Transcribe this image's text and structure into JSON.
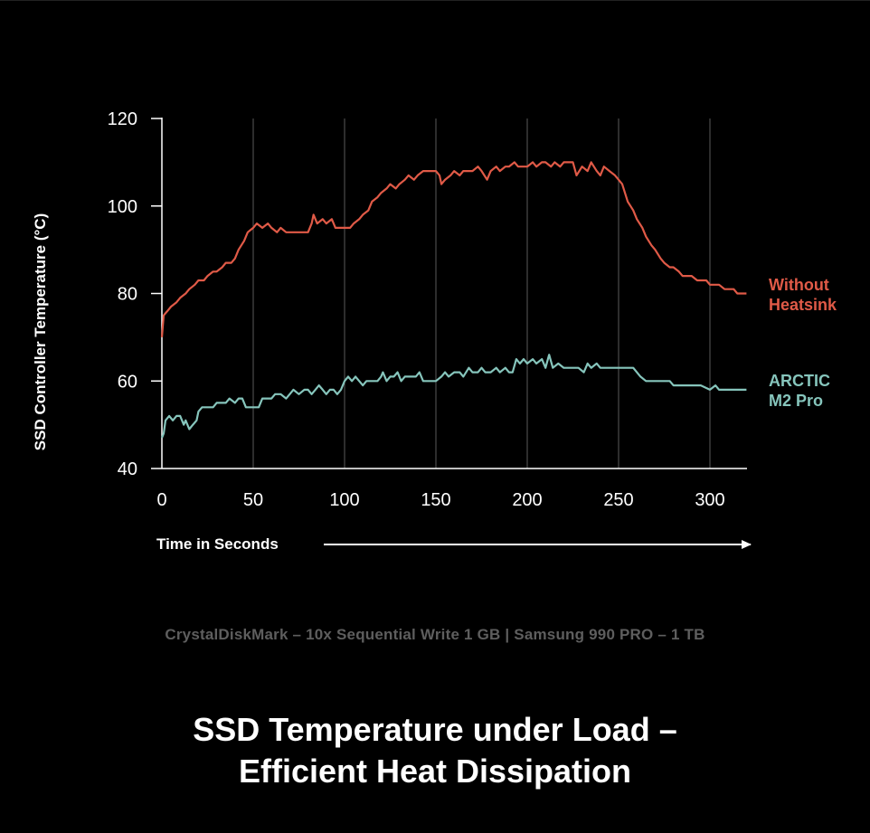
{
  "subtitle": "CrystalDiskMark – 10x Sequential Write 1 GB | Samsung 990 PRO – 1 TB",
  "title_line1": "SSD Temperature under Load –",
  "title_line2": "Efficient Heat Dissipation",
  "colors": {
    "background": "#000000",
    "without_heatsink": "#e05a47",
    "arctic": "#86c5bc",
    "grid": "#5a5a5a",
    "subtitle": "#5e5e5e"
  },
  "chart_data": {
    "type": "line",
    "xlabel": "Time in Seconds",
    "ylabel": "SSD Controller Temperature (°C)",
    "xlim": [
      0,
      320
    ],
    "ylim": [
      40,
      120
    ],
    "x_ticks": [
      0,
      50,
      100,
      150,
      200,
      250,
      300
    ],
    "y_ticks": [
      40,
      60,
      80,
      100,
      120
    ],
    "grid": "vertical",
    "legend_placement": "right",
    "series": [
      {
        "name_lines": [
          "Without",
          "Heatsink"
        ],
        "color": "#e05a47",
        "points": [
          [
            0,
            70
          ],
          [
            1,
            75
          ],
          [
            3,
            76
          ],
          [
            5,
            77
          ],
          [
            8,
            78
          ],
          [
            10,
            79
          ],
          [
            13,
            80
          ],
          [
            15,
            81
          ],
          [
            18,
            82
          ],
          [
            20,
            83
          ],
          [
            23,
            83
          ],
          [
            25,
            84
          ],
          [
            28,
            85
          ],
          [
            30,
            85
          ],
          [
            33,
            86
          ],
          [
            35,
            87
          ],
          [
            38,
            87
          ],
          [
            40,
            88
          ],
          [
            42,
            90
          ],
          [
            45,
            92
          ],
          [
            47,
            94
          ],
          [
            50,
            95
          ],
          [
            52,
            96
          ],
          [
            55,
            95
          ],
          [
            58,
            96
          ],
          [
            60,
            95
          ],
          [
            63,
            94
          ],
          [
            65,
            95
          ],
          [
            68,
            94
          ],
          [
            70,
            94
          ],
          [
            73,
            94
          ],
          [
            75,
            94
          ],
          [
            78,
            94
          ],
          [
            80,
            94
          ],
          [
            82,
            96
          ],
          [
            83,
            98
          ],
          [
            85,
            96
          ],
          [
            88,
            97
          ],
          [
            90,
            96
          ],
          [
            93,
            97
          ],
          [
            95,
            95
          ],
          [
            98,
            95
          ],
          [
            100,
            95
          ],
          [
            103,
            95
          ],
          [
            105,
            96
          ],
          [
            108,
            97
          ],
          [
            110,
            98
          ],
          [
            113,
            99
          ],
          [
            115,
            101
          ],
          [
            118,
            102
          ],
          [
            120,
            103
          ],
          [
            123,
            104
          ],
          [
            125,
            105
          ],
          [
            128,
            104
          ],
          [
            130,
            105
          ],
          [
            133,
            106
          ],
          [
            135,
            107
          ],
          [
            138,
            106
          ],
          [
            140,
            107
          ],
          [
            143,
            108
          ],
          [
            145,
            108
          ],
          [
            148,
            108
          ],
          [
            150,
            108
          ],
          [
            152,
            107
          ],
          [
            153,
            105
          ],
          [
            155,
            106
          ],
          [
            158,
            107
          ],
          [
            160,
            108
          ],
          [
            163,
            107
          ],
          [
            165,
            108
          ],
          [
            168,
            108
          ],
          [
            170,
            108
          ],
          [
            173,
            109
          ],
          [
            175,
            108
          ],
          [
            178,
            106
          ],
          [
            180,
            108
          ],
          [
            183,
            109
          ],
          [
            185,
            108
          ],
          [
            188,
            109
          ],
          [
            190,
            109
          ],
          [
            193,
            110
          ],
          [
            195,
            109
          ],
          [
            198,
            109
          ],
          [
            200,
            109
          ],
          [
            203,
            110
          ],
          [
            205,
            109
          ],
          [
            208,
            110
          ],
          [
            210,
            110
          ],
          [
            213,
            109
          ],
          [
            215,
            110
          ],
          [
            218,
            109
          ],
          [
            220,
            110
          ],
          [
            223,
            110
          ],
          [
            225,
            110
          ],
          [
            227,
            107
          ],
          [
            230,
            109
          ],
          [
            233,
            108
          ],
          [
            235,
            110
          ],
          [
            238,
            108
          ],
          [
            240,
            107
          ],
          [
            242,
            109
          ],
          [
            245,
            108
          ],
          [
            248,
            107
          ],
          [
            250,
            106
          ],
          [
            252,
            105
          ],
          [
            255,
            101
          ],
          [
            258,
            99
          ],
          [
            260,
            97
          ],
          [
            263,
            95
          ],
          [
            265,
            93
          ],
          [
            268,
            91
          ],
          [
            270,
            90
          ],
          [
            273,
            88
          ],
          [
            275,
            87
          ],
          [
            278,
            86
          ],
          [
            280,
            86
          ],
          [
            283,
            85
          ],
          [
            285,
            84
          ],
          [
            288,
            84
          ],
          [
            290,
            84
          ],
          [
            293,
            83
          ],
          [
            295,
            83
          ],
          [
            298,
            83
          ],
          [
            300,
            82
          ],
          [
            303,
            82
          ],
          [
            305,
            82
          ],
          [
            308,
            81
          ],
          [
            310,
            81
          ],
          [
            313,
            81
          ],
          [
            315,
            80
          ],
          [
            318,
            80
          ],
          [
            320,
            80
          ]
        ]
      },
      {
        "name_lines": [
          "ARCTIC",
          "M2 Pro"
        ],
        "color": "#86c5bc",
        "points": [
          [
            0,
            47
          ],
          [
            1,
            48
          ],
          [
            2,
            51
          ],
          [
            4,
            52
          ],
          [
            6,
            51
          ],
          [
            8,
            52
          ],
          [
            10,
            52
          ],
          [
            12,
            50
          ],
          [
            13,
            51
          ],
          [
            15,
            49
          ],
          [
            17,
            50
          ],
          [
            19,
            51
          ],
          [
            20,
            53
          ],
          [
            22,
            54
          ],
          [
            25,
            54
          ],
          [
            28,
            54
          ],
          [
            30,
            55
          ],
          [
            33,
            55
          ],
          [
            35,
            55
          ],
          [
            37,
            56
          ],
          [
            40,
            55
          ],
          [
            42,
            56
          ],
          [
            44,
            56
          ],
          [
            46,
            54
          ],
          [
            50,
            54
          ],
          [
            53,
            54
          ],
          [
            55,
            56
          ],
          [
            58,
            56
          ],
          [
            60,
            56
          ],
          [
            62,
            57
          ],
          [
            65,
            57
          ],
          [
            68,
            56
          ],
          [
            70,
            57
          ],
          [
            72,
            58
          ],
          [
            75,
            57
          ],
          [
            78,
            58
          ],
          [
            80,
            58
          ],
          [
            82,
            57
          ],
          [
            84,
            58
          ],
          [
            86,
            59
          ],
          [
            88,
            58
          ],
          [
            90,
            57
          ],
          [
            92,
            58
          ],
          [
            94,
            58
          ],
          [
            96,
            57
          ],
          [
            98,
            58
          ],
          [
            100,
            60
          ],
          [
            102,
            61
          ],
          [
            104,
            60
          ],
          [
            106,
            61
          ],
          [
            108,
            60
          ],
          [
            110,
            59
          ],
          [
            112,
            60
          ],
          [
            115,
            60
          ],
          [
            118,
            60
          ],
          [
            120,
            61
          ],
          [
            121,
            62
          ],
          [
            123,
            60
          ],
          [
            125,
            61
          ],
          [
            127,
            61
          ],
          [
            129,
            62
          ],
          [
            131,
            60
          ],
          [
            133,
            61
          ],
          [
            135,
            61
          ],
          [
            137,
            61
          ],
          [
            139,
            61
          ],
          [
            141,
            62
          ],
          [
            143,
            60
          ],
          [
            146,
            60
          ],
          [
            150,
            60
          ],
          [
            153,
            61
          ],
          [
            155,
            62
          ],
          [
            157,
            61
          ],
          [
            160,
            62
          ],
          [
            163,
            62
          ],
          [
            165,
            61
          ],
          [
            168,
            63
          ],
          [
            170,
            62
          ],
          [
            173,
            62
          ],
          [
            175,
            63
          ],
          [
            177,
            62
          ],
          [
            180,
            62
          ],
          [
            183,
            63
          ],
          [
            185,
            62
          ],
          [
            188,
            63
          ],
          [
            190,
            62
          ],
          [
            192,
            62
          ],
          [
            194,
            65
          ],
          [
            196,
            64
          ],
          [
            198,
            65
          ],
          [
            200,
            64
          ],
          [
            203,
            65
          ],
          [
            205,
            64
          ],
          [
            208,
            65
          ],
          [
            210,
            63
          ],
          [
            212,
            66
          ],
          [
            214,
            63
          ],
          [
            217,
            64
          ],
          [
            220,
            63
          ],
          [
            223,
            63
          ],
          [
            225,
            63
          ],
          [
            228,
            63
          ],
          [
            231,
            62
          ],
          [
            233,
            64
          ],
          [
            235,
            63
          ],
          [
            238,
            64
          ],
          [
            240,
            63
          ],
          [
            242,
            63
          ],
          [
            245,
            63
          ],
          [
            248,
            63
          ],
          [
            250,
            63
          ],
          [
            253,
            63
          ],
          [
            256,
            63
          ],
          [
            258,
            63
          ],
          [
            262,
            61
          ],
          [
            265,
            60
          ],
          [
            270,
            60
          ],
          [
            275,
            60
          ],
          [
            278,
            60
          ],
          [
            280,
            59
          ],
          [
            285,
            59
          ],
          [
            290,
            59
          ],
          [
            295,
            59
          ],
          [
            300,
            58
          ],
          [
            303,
            59
          ],
          [
            305,
            58
          ],
          [
            310,
            58
          ],
          [
            315,
            58
          ],
          [
            320,
            58
          ]
        ]
      }
    ]
  }
}
